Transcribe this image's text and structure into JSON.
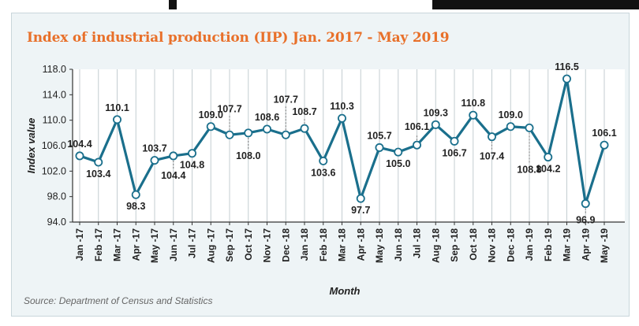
{
  "chart_data": {
    "type": "line",
    "title": "Index of industrial production (IIP) Jan. 2017 - May 2019",
    "xlabel": "Month",
    "ylabel": "Index value",
    "ylim": [
      94.0,
      118.0
    ],
    "yticks": [
      "94.0",
      "98.0",
      "102.0",
      "106.0",
      "110.0",
      "114.0",
      "118.0"
    ],
    "categories": [
      "Jan -17",
      "Feb -17",
      "Mar -17",
      "Apr -17",
      "May -17",
      "Jun -17",
      "Jul -17",
      "Aug -17",
      "Sep -17",
      "Oct -17",
      "Nov -17",
      "Dec -18",
      "Jan -18",
      "Feb -18",
      "Mar -18",
      "Apr -18",
      "May -18",
      "Jun -18",
      "Jul -18",
      "Aug -18",
      "Sep -18",
      "Oct -18",
      "Nov -18",
      "Dec -18",
      "Jan -19",
      "Feb -19",
      "Mar -19",
      "Apr -19",
      "May -19"
    ],
    "values": [
      104.4,
      103.4,
      110.1,
      98.3,
      103.7,
      104.4,
      104.8,
      109.0,
      107.7,
      108.0,
      108.6,
      107.7,
      108.7,
      103.6,
      110.3,
      97.7,
      105.7,
      105.0,
      106.1,
      109.3,
      106.7,
      110.8,
      107.4,
      109.0,
      108.8,
      104.2,
      116.5,
      96.9,
      106.1
    ],
    "data_labels": [
      "104.4",
      "103.4",
      "110.1",
      "98.3",
      "103.7",
      "104.4",
      "104.8",
      "109.0",
      "107.7",
      "108.0",
      "108.6",
      "107.7",
      "108.7",
      "103.6",
      "110.3",
      "97.7",
      "105.7",
      "105.0",
      "106.1",
      "109.3",
      "106.7",
      "110.8",
      "107.4",
      "109.0",
      "108.8",
      "104.2",
      "116.5",
      "96.9",
      "106.1"
    ],
    "grid": "vertical",
    "colors": {
      "line": "#1a6f8c",
      "title": "#e8702a",
      "panel": "#eef4f6",
      "grid": "#c4cdd1"
    },
    "source": "Source: Department of Census and Statistics"
  }
}
